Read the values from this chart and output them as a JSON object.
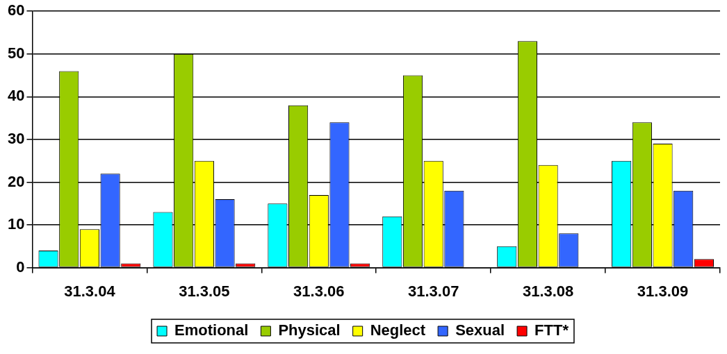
{
  "chart_data": {
    "type": "bar",
    "categories": [
      "31.3.04",
      "31.3.05",
      "31.3.06",
      "31.3.07",
      "31.3.08",
      "31.3.09"
    ],
    "series": [
      {
        "name": "Emotional",
        "color": "#00ffff",
        "values": [
          4,
          13,
          15,
          12,
          5,
          25
        ]
      },
      {
        "name": "Physical",
        "color": "#99cc00",
        "values": [
          46,
          50,
          38,
          45,
          53,
          34
        ]
      },
      {
        "name": "Neglect",
        "color": "#ffff00",
        "values": [
          9,
          25,
          17,
          25,
          24,
          29
        ]
      },
      {
        "name": "Sexual",
        "color": "#3366ff",
        "values": [
          22,
          16,
          34,
          18,
          8,
          18
        ]
      },
      {
        "name": "FTT*",
        "color": "#ff0000",
        "values": [
          1,
          1,
          1,
          0,
          0,
          2
        ]
      }
    ],
    "ylim": [
      0,
      60
    ],
    "yticks": [
      0,
      10,
      20,
      30,
      40,
      50,
      60
    ],
    "grid": "y",
    "legend": "bottom"
  }
}
